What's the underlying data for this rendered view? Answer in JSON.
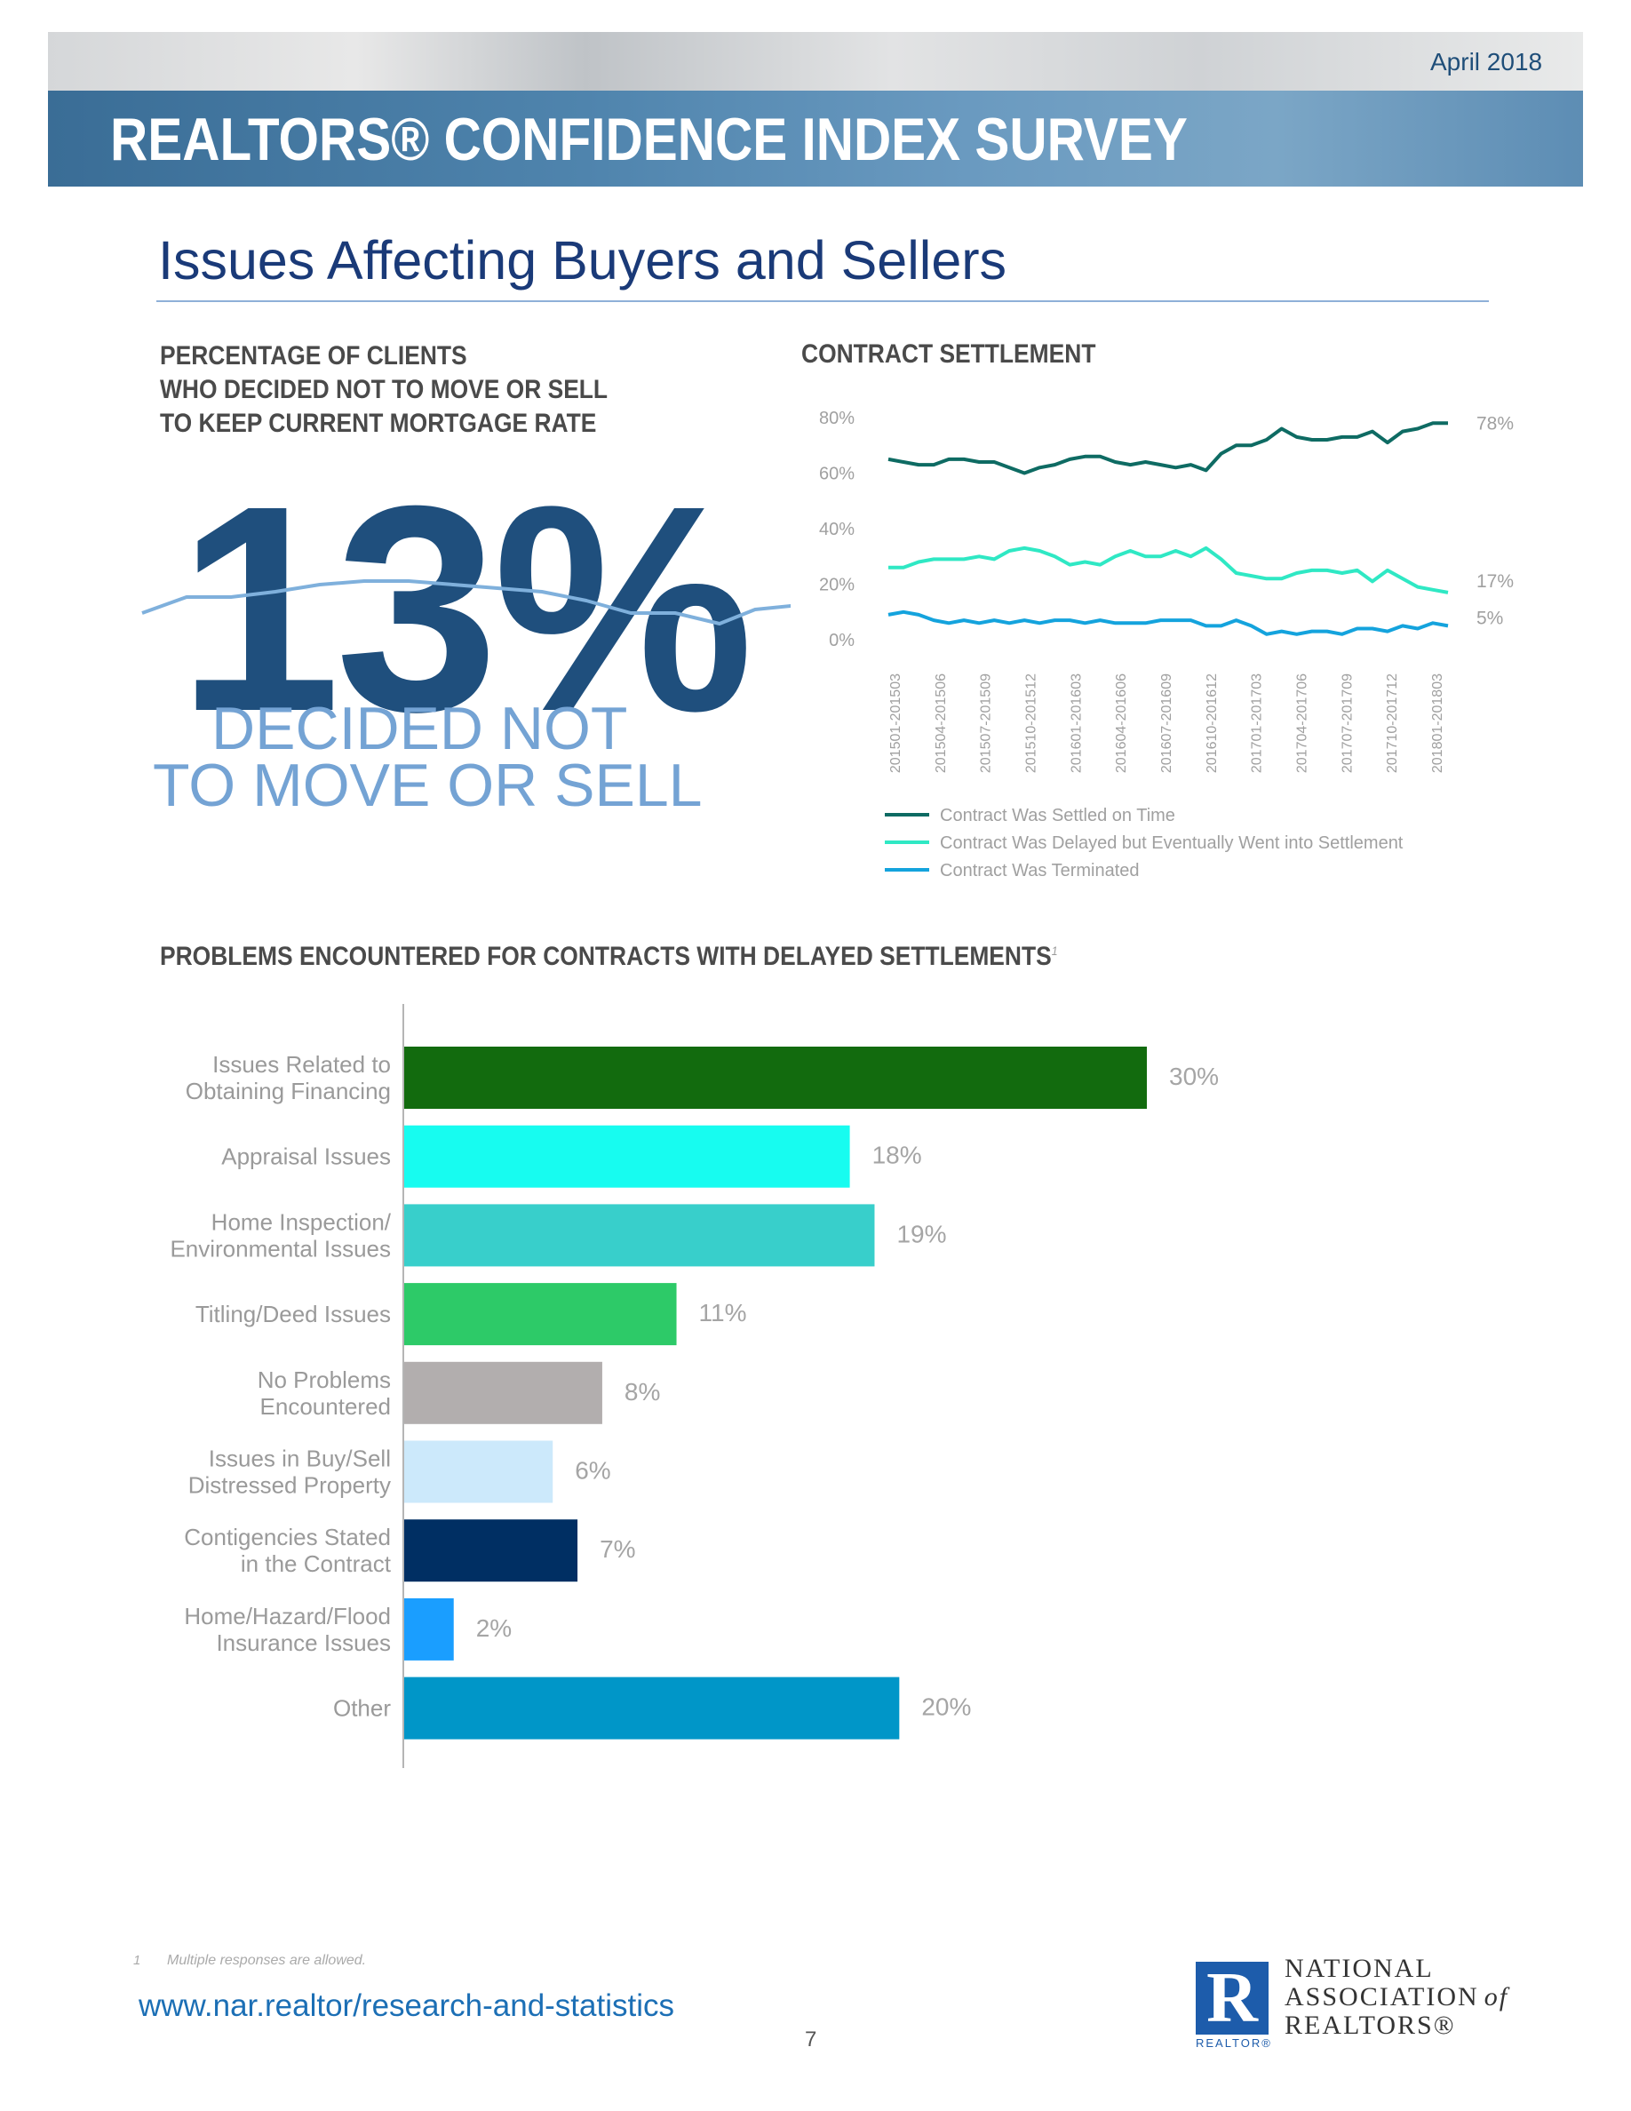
{
  "header": {
    "date": "April 2018",
    "banner_title": "REALTORS® CONFIDENCE INDEX SURVEY"
  },
  "page_title": "Issues Affecting Buyers and Sellers",
  "stat_panel": {
    "heading_lines": [
      "PERCENTAGE OF CLIENTS",
      "WHO DECIDED NOT TO MOVE OR SELL",
      "TO KEEP CURRENT MORTGAGE RATE"
    ],
    "value": "13%",
    "caption_line1": "DECIDED NOT",
    "caption_line2": "TO MOVE OR SELL",
    "decor_line_color": "#7fb0dc"
  },
  "contract_chart_heading": "CONTRACT SETTLEMENT",
  "bar_chart_heading": "PROBLEMS ENCOUNTERED FOR CONTRACTS WITH DELAYED SETTLEMENTS",
  "bar_chart_footnote_mark": "1",
  "chart_data": [
    {
      "type": "line",
      "title": "CONTRACT SETTLEMENT",
      "x_tick_labels": [
        "201501-201503",
        "201504-201506",
        "201507-201509",
        "201510-201512",
        "201601-201603",
        "201604-201606",
        "201607-201609",
        "201610-201612",
        "201701-201703",
        "201704-201706",
        "201707-201709",
        "201710-201712",
        "201801-201803"
      ],
      "y_ticks": [
        "80%",
        "60%",
        "40%",
        "20%",
        "0%"
      ],
      "ylim": [
        0,
        80
      ],
      "grid": false,
      "legend_position": "bottom",
      "series": [
        {
          "name": "Contract Was Settled on Time",
          "color": "#0e6b63",
          "end_label": "78%",
          "values": [
            65,
            64,
            63,
            63,
            65,
            65,
            64,
            64,
            62,
            60,
            62,
            63,
            65,
            66,
            66,
            64,
            63,
            64,
            63,
            62,
            63,
            61,
            67,
            70,
            70,
            72,
            76,
            73,
            72,
            72,
            73,
            73,
            75,
            71,
            75,
            76,
            78,
            78
          ]
        },
        {
          "name": "Contract Was Delayed but Eventually Went into Settlement",
          "color": "#2fe8c4",
          "end_label": "17%",
          "values": [
            26,
            26,
            28,
            29,
            29,
            29,
            30,
            29,
            32,
            33,
            32,
            30,
            27,
            28,
            27,
            30,
            32,
            30,
            30,
            32,
            30,
            33,
            29,
            24,
            23,
            22,
            22,
            24,
            25,
            25,
            24,
            25,
            21,
            25,
            22,
            19,
            18,
            17
          ]
        },
        {
          "name": "Contract Was Terminated",
          "color": "#14a3dd",
          "end_label": "5%",
          "values": [
            9,
            10,
            9,
            7,
            6,
            7,
            6,
            7,
            6,
            7,
            6,
            7,
            7,
            6,
            7,
            6,
            6,
            6,
            7,
            7,
            7,
            5,
            5,
            7,
            5,
            2,
            3,
            2,
            3,
            3,
            2,
            4,
            4,
            3,
            5,
            4,
            6,
            5
          ]
        }
      ]
    },
    {
      "type": "bar",
      "orientation": "horizontal",
      "title": "PROBLEMS ENCOUNTERED FOR CONTRACTS WITH DELAYED SETTLEMENTS",
      "xlim": [
        0,
        30
      ],
      "categories": [
        [
          "Issues Related to",
          "Obtaining Financing"
        ],
        [
          "Appraisal Issues"
        ],
        [
          "Home Inspection/",
          "Environmental Issues"
        ],
        [
          "Titling/Deed Issues"
        ],
        [
          "No Problems",
          "Encountered"
        ],
        [
          "Issues in Buy/Sell",
          "Distressed Property"
        ],
        [
          "Contigencies Stated",
          "in the Contract"
        ],
        [
          "Home/Hazard/Flood",
          "Insurance Issues"
        ],
        [
          "Other"
        ]
      ],
      "values": [
        30,
        18,
        19,
        11,
        8,
        6,
        7,
        2,
        20
      ],
      "value_labels": [
        "30%",
        "18%",
        "19%",
        "11%",
        "8%",
        "6%",
        "7%",
        "2%",
        "20%"
      ],
      "colors": [
        "#126b0e",
        "#17fcf0",
        "#38cfcb",
        "#2dca68",
        "#b2aeae",
        "#cce9fb",
        "#002f63",
        "#1a9eff",
        "#0096c8"
      ]
    }
  ],
  "footer": {
    "footnote_number": "1",
    "footnote_text": "Multiple responses are allowed.",
    "url": "www.nar.realtor/research-and-statistics",
    "page_number": "7",
    "logo_letter": "R",
    "logo_caption": "REALTOR®",
    "org_line1": "NATIONAL",
    "org_line2": "ASSOCIATION",
    "org_of": "of",
    "org_line3": "REALTORS®"
  }
}
